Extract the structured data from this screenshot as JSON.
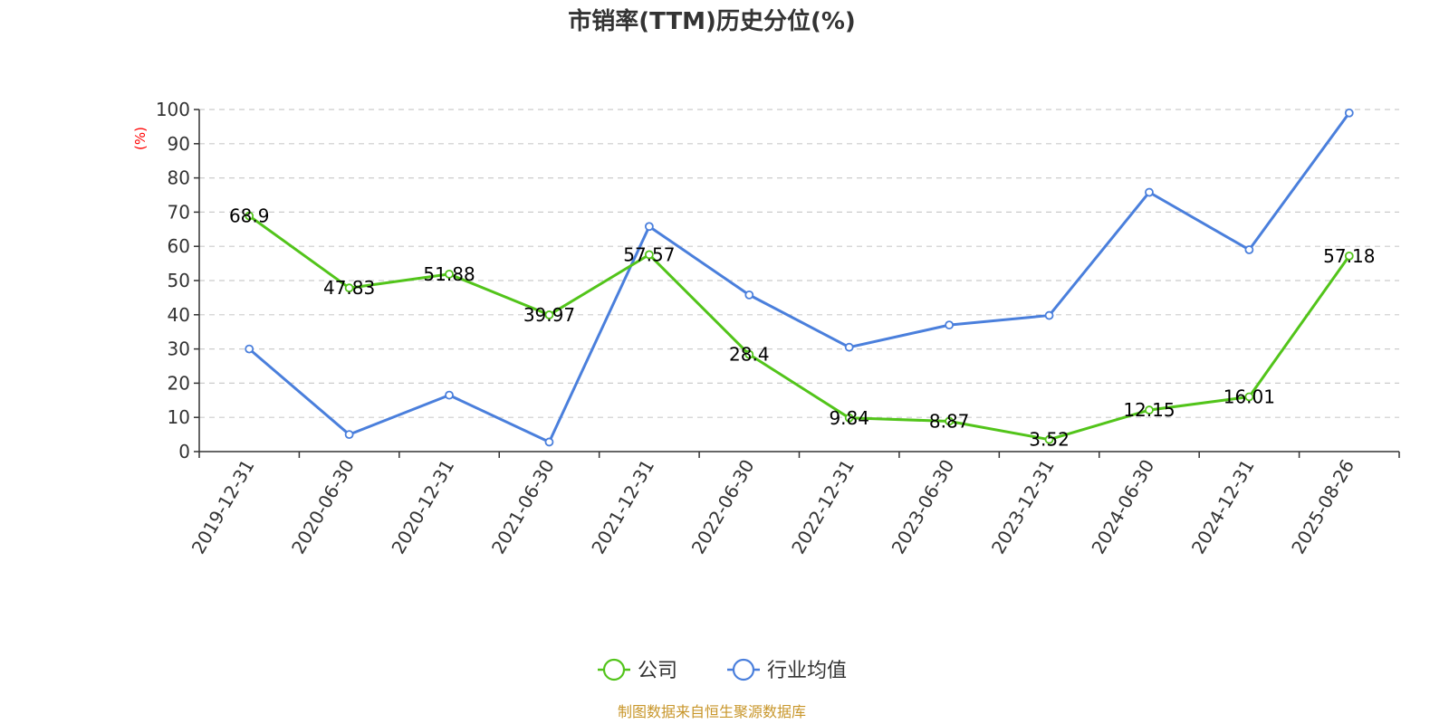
{
  "chart_data": {
    "type": "line",
    "title": "市销率(TTM)历史分位(%)",
    "ylabel": "(%)",
    "xlabel": "",
    "ylim": [
      0,
      100
    ],
    "yticks": [
      0,
      10,
      20,
      30,
      40,
      50,
      60,
      70,
      80,
      90,
      100
    ],
    "grid": "horizontal-dashed",
    "legend_position": "bottom-center",
    "categories": [
      "2019-12-31",
      "2020-06-30",
      "2020-12-31",
      "2021-06-30",
      "2021-12-31",
      "2022-06-30",
      "2022-12-31",
      "2023-06-30",
      "2023-12-31",
      "2024-06-30",
      "2024-12-31",
      "2025-08-26"
    ],
    "series": [
      {
        "name": "公司",
        "color": "#52c41a",
        "labeled": true,
        "values": [
          68.9,
          47.83,
          51.88,
          39.97,
          57.57,
          28.4,
          9.84,
          8.87,
          3.52,
          12.15,
          16.01,
          57.18
        ],
        "labels": [
          "68.9",
          "47.83",
          "51.88",
          "39.97",
          "57.57",
          "28.4",
          "9.84",
          "8.87",
          "3.52",
          "12.15",
          "16.01",
          "57.18"
        ]
      },
      {
        "name": "行业均值",
        "color": "#4a7fdc",
        "labeled": false,
        "values": [
          30,
          5,
          16.5,
          2.8,
          65.8,
          45.8,
          30.5,
          37,
          39.8,
          75.8,
          59,
          99
        ]
      }
    ]
  },
  "source_text": "制图数据来自恒生聚源数据库"
}
